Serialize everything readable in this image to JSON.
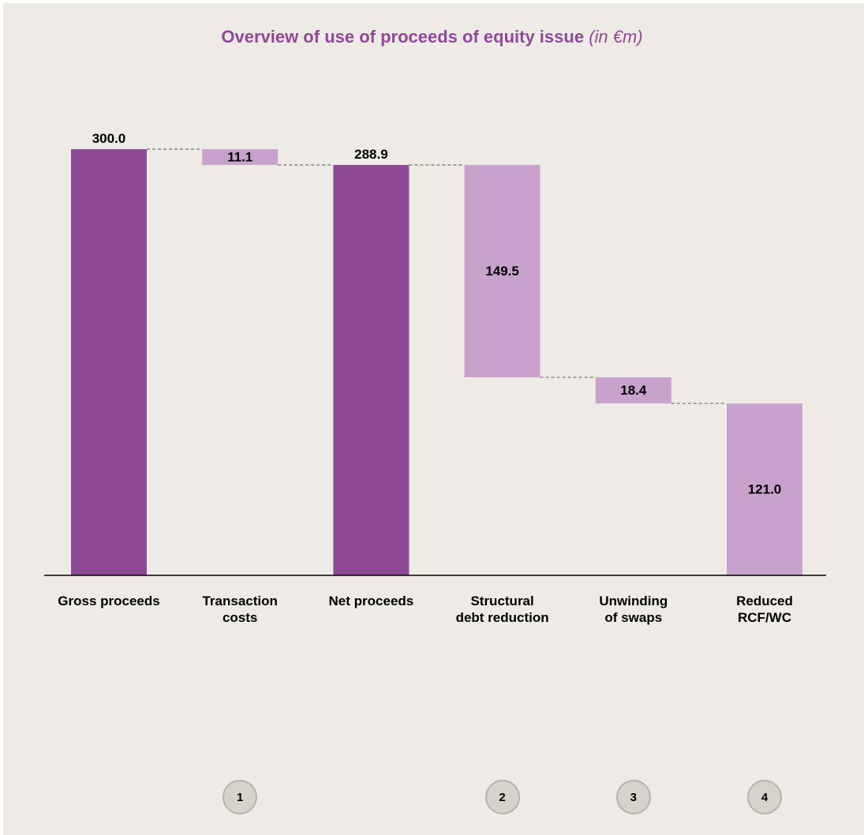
{
  "colors": {
    "background": "#eeebe7",
    "title": "#8e4a94",
    "total_bar": "#8e4a94",
    "delta_bar": "#c8a2cc",
    "connector": "#6e6e6e",
    "step_circle": "#d7d2cb"
  },
  "chart_data": {
    "type": "bar",
    "subtype": "waterfall",
    "title": "Overview of use of proceeds of equity issue",
    "subtitle": "(in €m)",
    "xlabel": "",
    "ylabel": "",
    "ylim": [
      0,
      300
    ],
    "categories": [
      "Gross proceeds",
      "Transaction costs",
      "Net proceeds",
      "Structural debt reduction",
      "Unwinding of swaps",
      "Reduced RCF/WC"
    ],
    "category_lines": [
      [
        "Gross proceeds"
      ],
      [
        "Transaction",
        "costs"
      ],
      [
        "Net proceeds"
      ],
      [
        "Structural",
        "debt reduction"
      ],
      [
        "Unwinding",
        "of swaps"
      ],
      [
        "Reduced",
        "RCF/WC"
      ]
    ],
    "values": [
      300.0,
      11.1,
      288.9,
      149.5,
      18.4,
      121.0
    ],
    "bar_kind": [
      "total",
      "decrease",
      "total",
      "decrease",
      "decrease",
      "decrease"
    ],
    "data_labels": [
      "300.0",
      "11.1",
      "288.9",
      "149.5",
      "18.4",
      "121.0"
    ],
    "step_numbers": [
      "",
      "1",
      "",
      "2",
      "3",
      "4"
    ],
    "grid": false,
    "legend": "none"
  }
}
